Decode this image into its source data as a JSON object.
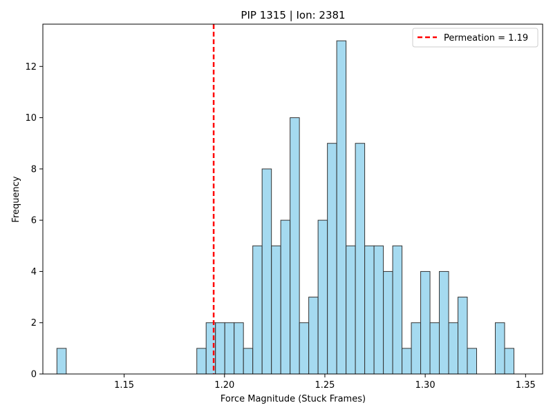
{
  "chart_data": {
    "type": "bar",
    "title": "PIP 1315 | Ion: 2381",
    "xlabel": "Force Magnitude (Stuck Frames)",
    "ylabel": "Frequency",
    "xlim": [
      1.1095,
      1.3585
    ],
    "ylim": [
      0,
      13.65
    ],
    "x_ticks": [
      1.15,
      1.2,
      1.25,
      1.3,
      1.35
    ],
    "x_tick_labels": [
      "1.15",
      "1.20",
      "1.25",
      "1.30",
      "1.35"
    ],
    "y_ticks": [
      0,
      2,
      4,
      6,
      8,
      10,
      12
    ],
    "y_tick_labels": [
      "0",
      "2",
      "4",
      "6",
      "8",
      "10",
      "12"
    ],
    "bin_start": 1.1165,
    "bin_width": 0.004647,
    "counts": [
      1,
      0,
      0,
      0,
      0,
      0,
      0,
      0,
      0,
      0,
      0,
      0,
      0,
      0,
      0,
      1,
      2,
      2,
      2,
      2,
      1,
      5,
      8,
      5,
      6,
      10,
      2,
      3,
      6,
      9,
      13,
      5,
      9,
      5,
      5,
      4,
      5,
      1,
      2,
      4,
      2,
      4,
      2,
      3,
      1,
      0,
      0,
      2,
      1
    ],
    "bar_color": "#87CEEB",
    "bar_edge_color": "#333333",
    "grid": false,
    "reference_line": {
      "x": 1.1946,
      "color": "#ff0000",
      "style": "dashed",
      "label": "Permeation = 1.19"
    },
    "legend": {
      "position": "top-right",
      "entries": [
        "Permeation = 1.19"
      ]
    }
  }
}
